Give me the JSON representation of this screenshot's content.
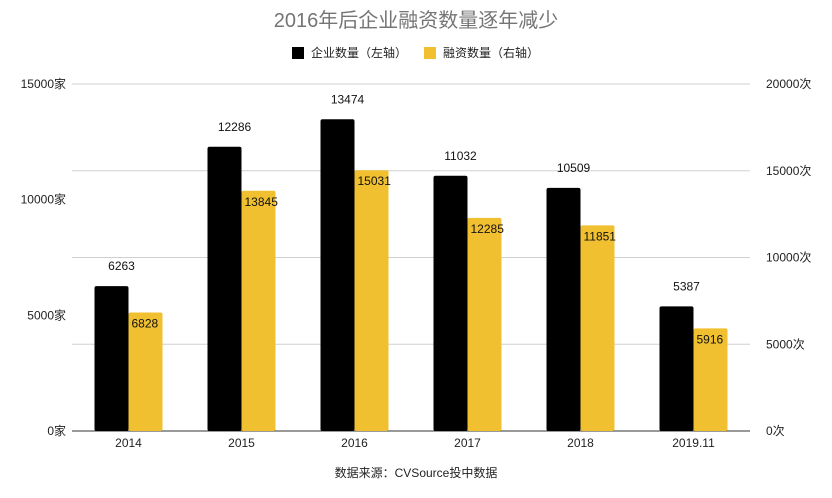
{
  "chart_data": {
    "type": "bar",
    "title": "2016年后企业融资数量逐年减少",
    "source": "数据来源：CVSource投中数据",
    "categories": [
      "2014",
      "2015",
      "2016",
      "2017",
      "2018",
      "2019.11"
    ],
    "series": [
      {
        "name": "企业数量（左轴）",
        "axis": "left",
        "color": "#000000",
        "values": [
          6263,
          12286,
          13474,
          11032,
          10509,
          5387
        ],
        "labels": [
          "6263",
          "12286",
          "13474",
          "11032",
          "10509",
          "5387"
        ]
      },
      {
        "name": "融资数量（右轴）",
        "axis": "right",
        "color": "#f0c030",
        "values": [
          6828,
          13845,
          15031,
          12285,
          11851,
          5916
        ],
        "labels": [
          "6828",
          "13845",
          "15031",
          "12285",
          "11851",
          "5916"
        ]
      }
    ],
    "y_left": {
      "range": [
        0,
        15000
      ],
      "ticks": [
        0,
        5000,
        10000,
        15000
      ],
      "tick_labels": [
        "0家",
        "5000家",
        "10000家",
        "15000家"
      ]
    },
    "y_right": {
      "range": [
        0,
        20000
      ],
      "ticks": [
        0,
        5000,
        10000,
        15000,
        20000
      ],
      "tick_labels": [
        "0次",
        "5000次",
        "10000次",
        "15000次",
        "20000次"
      ]
    },
    "legend_position": "top-center",
    "grid": true
  }
}
